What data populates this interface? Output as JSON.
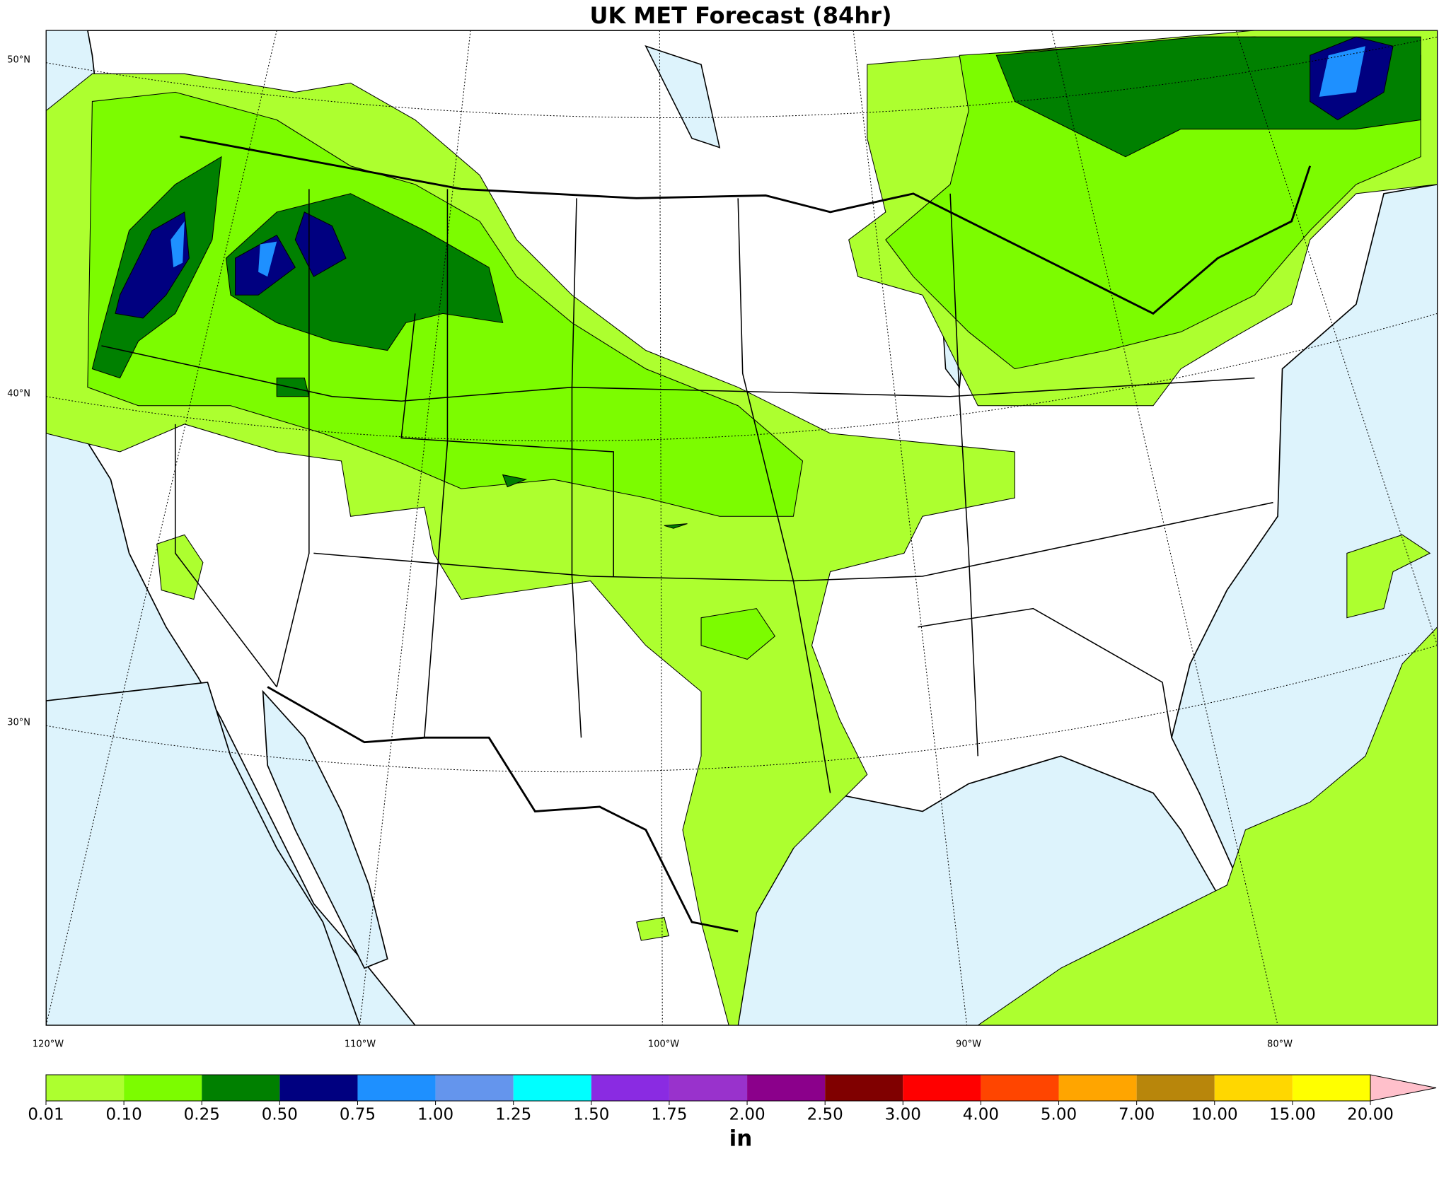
{
  "title": "UK MET Forecast (84hr)",
  "map": {
    "lat_labels": [
      "50°N",
      "40°N",
      "30°N"
    ],
    "lon_labels": [
      "120°W",
      "110°W",
      "100°W",
      "90°W",
      "80°W"
    ]
  },
  "colorbar": {
    "levels": [
      {
        "value": 0.01,
        "label": "0.01"
      },
      {
        "value": 0.1,
        "label": "0.10"
      },
      {
        "value": 0.25,
        "label": "0.25"
      },
      {
        "value": 0.5,
        "label": "0.50"
      },
      {
        "value": 0.75,
        "label": "0.75"
      },
      {
        "value": 1,
        "label": "1.00"
      },
      {
        "value": 1.25,
        "label": "1.25"
      },
      {
        "value": 1.5,
        "label": "1.50"
      },
      {
        "value": 1.75,
        "label": "1.75"
      },
      {
        "value": 2,
        "label": "2.00"
      },
      {
        "value": 2.5,
        "label": "2.50"
      },
      {
        "value": 3,
        "label": "3.00"
      },
      {
        "value": 4,
        "label": "4.00"
      },
      {
        "value": 5,
        "label": "5.00"
      },
      {
        "value": 7,
        "label": "7.00"
      },
      {
        "value": 10,
        "label": "10.00"
      },
      {
        "value": 15,
        "label": "15.00"
      },
      {
        "value": 20,
        "label": "20.00"
      }
    ],
    "colors": [
      "#adff2f",
      "#7cfc00",
      "#008000",
      "#000080",
      "#1e90ff",
      "#6495ed",
      "#00ffff",
      "#8a2be2",
      "#9932cc",
      "#8b008b",
      "#800000",
      "#ff0000",
      "#ff4500",
      "#ffa500",
      "#b8860b",
      "#ffd700",
      "#ffff00"
    ],
    "extend_color": "#ffc0cb",
    "unit": "in"
  }
}
